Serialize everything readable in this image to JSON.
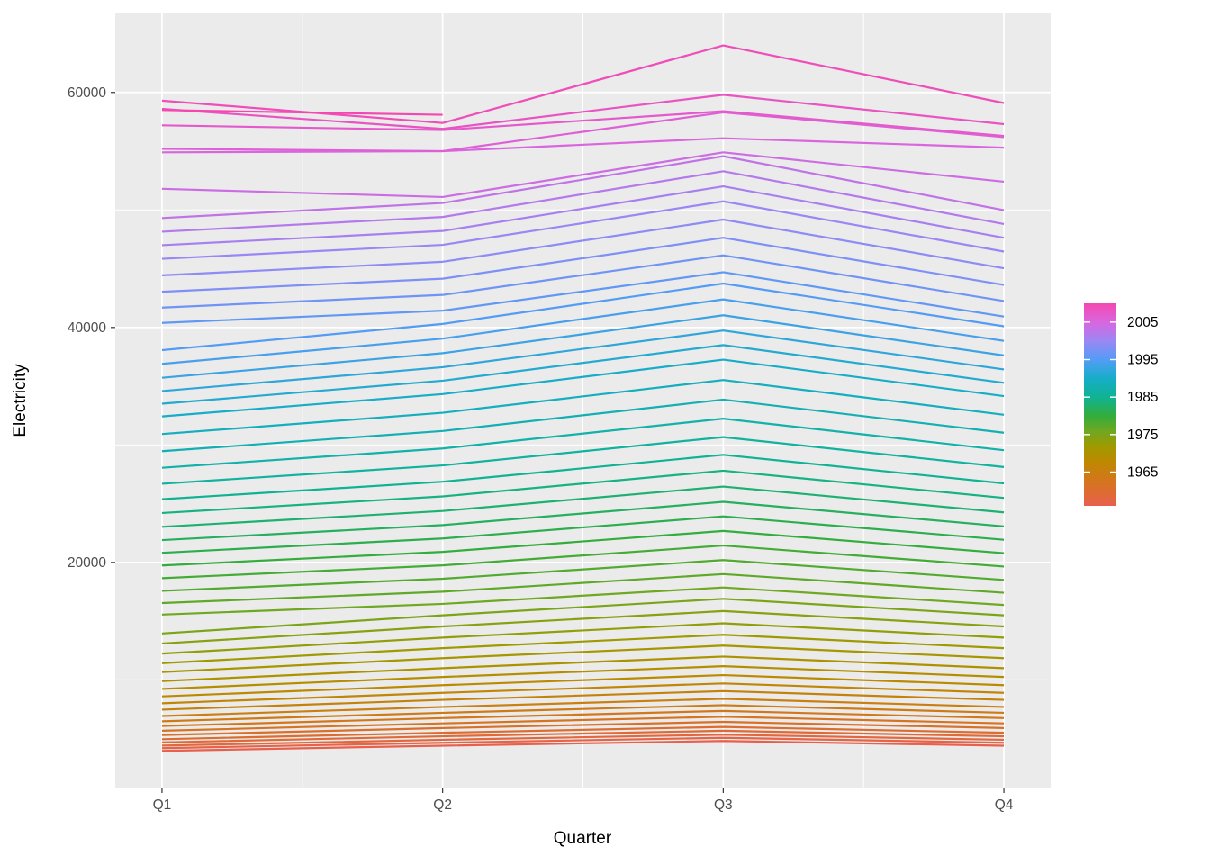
{
  "figure": {
    "background": "#FFFFFF"
  },
  "chart_data": {
    "type": "line",
    "title": "",
    "xlabel": "Quarter",
    "ylabel": "Electricity",
    "x_tick_labels": [
      "Q1",
      "Q2",
      "Q3",
      "Q4"
    ],
    "y_tick_labels": [
      "20000",
      "40000",
      "60000"
    ],
    "y_tick_values": [
      20000,
      40000,
      60000
    ],
    "y_minor_values": [
      10000,
      30000,
      50000
    ],
    "ylim": [
      760,
      66800
    ],
    "grid": true,
    "panel_bg": "#EBEBEB",
    "grid_color": "#FFFFFF",
    "tick_mark_color": "#333333",
    "tick_label_color": "#4D4D4D",
    "axis_title_color": "#000000",
    "legend": {
      "position": "right",
      "tick_labels": [
        "2005",
        "1995",
        "1985",
        "1975",
        "1965"
      ],
      "tick_years": [
        2005,
        1995,
        1985,
        1975,
        1965
      ],
      "year_min": 1956,
      "year_max": 2010
    },
    "color_scale": [
      {
        "year": 1956,
        "color": "#E8604D"
      },
      {
        "year": 1963,
        "color": "#D3771B"
      },
      {
        "year": 1968,
        "color": "#BC8A00"
      },
      {
        "year": 1972,
        "color": "#9E9A00"
      },
      {
        "year": 1976,
        "color": "#6FA821"
      },
      {
        "year": 1980,
        "color": "#33AD3C"
      },
      {
        "year": 1985,
        "color": "#0FB394"
      },
      {
        "year": 1990,
        "color": "#17ADC8"
      },
      {
        "year": 1995,
        "color": "#539CF6"
      },
      {
        "year": 2000,
        "color": "#9B87F4"
      },
      {
        "year": 2005,
        "color": "#D966DF"
      },
      {
        "year": 2010,
        "color": "#F448B0"
      }
    ],
    "series": [
      {
        "year": 1956,
        "values": [
          3960,
          4400,
          4800,
          4400
        ]
      },
      {
        "year": 1957,
        "values": [
          4190,
          4650,
          5070,
          4650
        ]
      },
      {
        "year": 1958,
        "values": [
          4410,
          4900,
          5340,
          4900
        ]
      },
      {
        "year": 1959,
        "values": [
          4680,
          5200,
          5670,
          5200
        ]
      },
      {
        "year": 1960,
        "values": [
          4950,
          5500,
          6000,
          5500
        ]
      },
      {
        "year": 1961,
        "values": [
          5310,
          5900,
          6430,
          5900
        ]
      },
      {
        "year": 1962,
        "values": [
          5670,
          6300,
          6870,
          6300
        ]
      },
      {
        "year": 1963,
        "values": [
          6080,
          6750,
          7360,
          6750
        ]
      },
      {
        "year": 1964,
        "values": [
          6480,
          7200,
          7850,
          7200
        ]
      },
      {
        "year": 1965,
        "values": [
          6930,
          7700,
          8390,
          7700
        ]
      },
      {
        "year": 1966,
        "values": [
          7470,
          8300,
          9050,
          8300
        ]
      },
      {
        "year": 1967,
        "values": [
          8010,
          8900,
          9700,
          8900
        ]
      },
      {
        "year": 1968,
        "values": [
          8600,
          9550,
          10410,
          9550
        ]
      },
      {
        "year": 1969,
        "values": [
          9230,
          10250,
          11170,
          10250
        ]
      },
      {
        "year": 1970,
        "values": [
          9900,
          11000,
          11990,
          11000
        ]
      },
      {
        "year": 1971,
        "values": [
          10670,
          11850,
          12920,
          11850
        ]
      },
      {
        "year": 1972,
        "values": [
          11430,
          12700,
          13840,
          12700
        ]
      },
      {
        "year": 1973,
        "values": [
          12240,
          13600,
          14820,
          13600
        ]
      },
      {
        "year": 1974,
        "values": [
          13100,
          14550,
          15860,
          14550
        ]
      },
      {
        "year": 1975,
        "values": [
          13950,
          15500,
          16900,
          15500
        ]
      },
      {
        "year": 1976,
        "values": [
          15560,
          16470,
          17870,
          16380
        ]
      },
      {
        "year": 1977,
        "values": [
          16540,
          17510,
          19010,
          17420
        ]
      },
      {
        "year": 1978,
        "values": [
          17580,
          18610,
          20200,
          18510
        ]
      },
      {
        "year": 1979,
        "values": [
          18660,
          19750,
          21440,
          19650
        ]
      },
      {
        "year": 1980,
        "values": [
          19740,
          20900,
          22680,
          20790
        ]
      },
      {
        "year": 1981,
        "values": [
          20820,
          22040,
          23920,
          21930
        ]
      },
      {
        "year": 1982,
        "values": [
          21900,
          23180,
          25160,
          23070
        ]
      },
      {
        "year": 1983,
        "values": [
          23030,
          24380,
          26460,
          24260
        ]
      },
      {
        "year": 1984,
        "values": [
          24210,
          25620,
          27810,
          25490
        ]
      },
      {
        "year": 1985,
        "values": [
          25380,
          26870,
          29160,
          26730
        ]
      },
      {
        "year": 1986,
        "values": [
          26700,
          28260,
          30670,
          28120
        ]
      },
      {
        "year": 1987,
        "values": [
          28060,
          29700,
          32240,
          29550
        ]
      },
      {
        "year": 1988,
        "values": [
          29470,
          31190,
          33860,
          31040
        ]
      },
      {
        "year": 1989,
        "values": [
          30930,
          32740,
          35530,
          32570
        ]
      },
      {
        "year": 1990,
        "values": [
          32430,
          34330,
          37260,
          34160
        ]
      },
      {
        "year": 1991,
        "values": [
          33510,
          35470,
          38500,
          35290
        ]
      },
      {
        "year": 1992,
        "values": [
          34590,
          36620,
          39740,
          36430
        ]
      },
      {
        "year": 1993,
        "values": [
          35720,
          37810,
          41040,
          37620
        ]
      },
      {
        "year": 1994,
        "values": [
          36900,
          39050,
          42390,
          38860
        ]
      },
      {
        "year": 1995,
        "values": [
          38070,
          40300,
          43740,
          40100
        ]
      },
      {
        "year": 1996,
        "values": [
          40390,
          41430,
          44700,
          40930
        ]
      },
      {
        "year": 1997,
        "values": [
          41690,
          42770,
          46140,
          42250
        ]
      },
      {
        "year": 1998,
        "values": [
          43040,
          44150,
          47630,
          43620
        ]
      },
      {
        "year": 1999,
        "values": [
          44440,
          45590,
          49180,
          45040
        ]
      },
      {
        "year": 2000,
        "values": [
          45840,
          47030,
          50730,
          46460
        ]
      },
      {
        "year": 2001,
        "values": [
          47000,
          48210,
          52010,
          47630
        ]
      },
      {
        "year": 2002,
        "values": [
          48150,
          49400,
          53290,
          48800
        ]
      },
      {
        "year": 2003,
        "values": [
          49310,
          50590,
          54570,
          49980
        ]
      },
      {
        "year": 2004,
        "values": [
          51800,
          51100,
          54900,
          52400
        ]
      },
      {
        "year": 2005,
        "values": [
          54900,
          55000,
          56100,
          55300
        ]
      },
      {
        "year": 2006,
        "values": [
          55200,
          55000,
          58300,
          56200
        ]
      },
      {
        "year": 2007,
        "values": [
          57200,
          56800,
          58400,
          56300
        ]
      },
      {
        "year": 2008,
        "values": [
          58600,
          56900,
          59800,
          57300
        ]
      },
      {
        "year": 2009,
        "values": [
          59300,
          57400,
          64000,
          59100
        ]
      },
      {
        "year": 2010,
        "values": [
          58500,
          58100
        ]
      }
    ]
  }
}
